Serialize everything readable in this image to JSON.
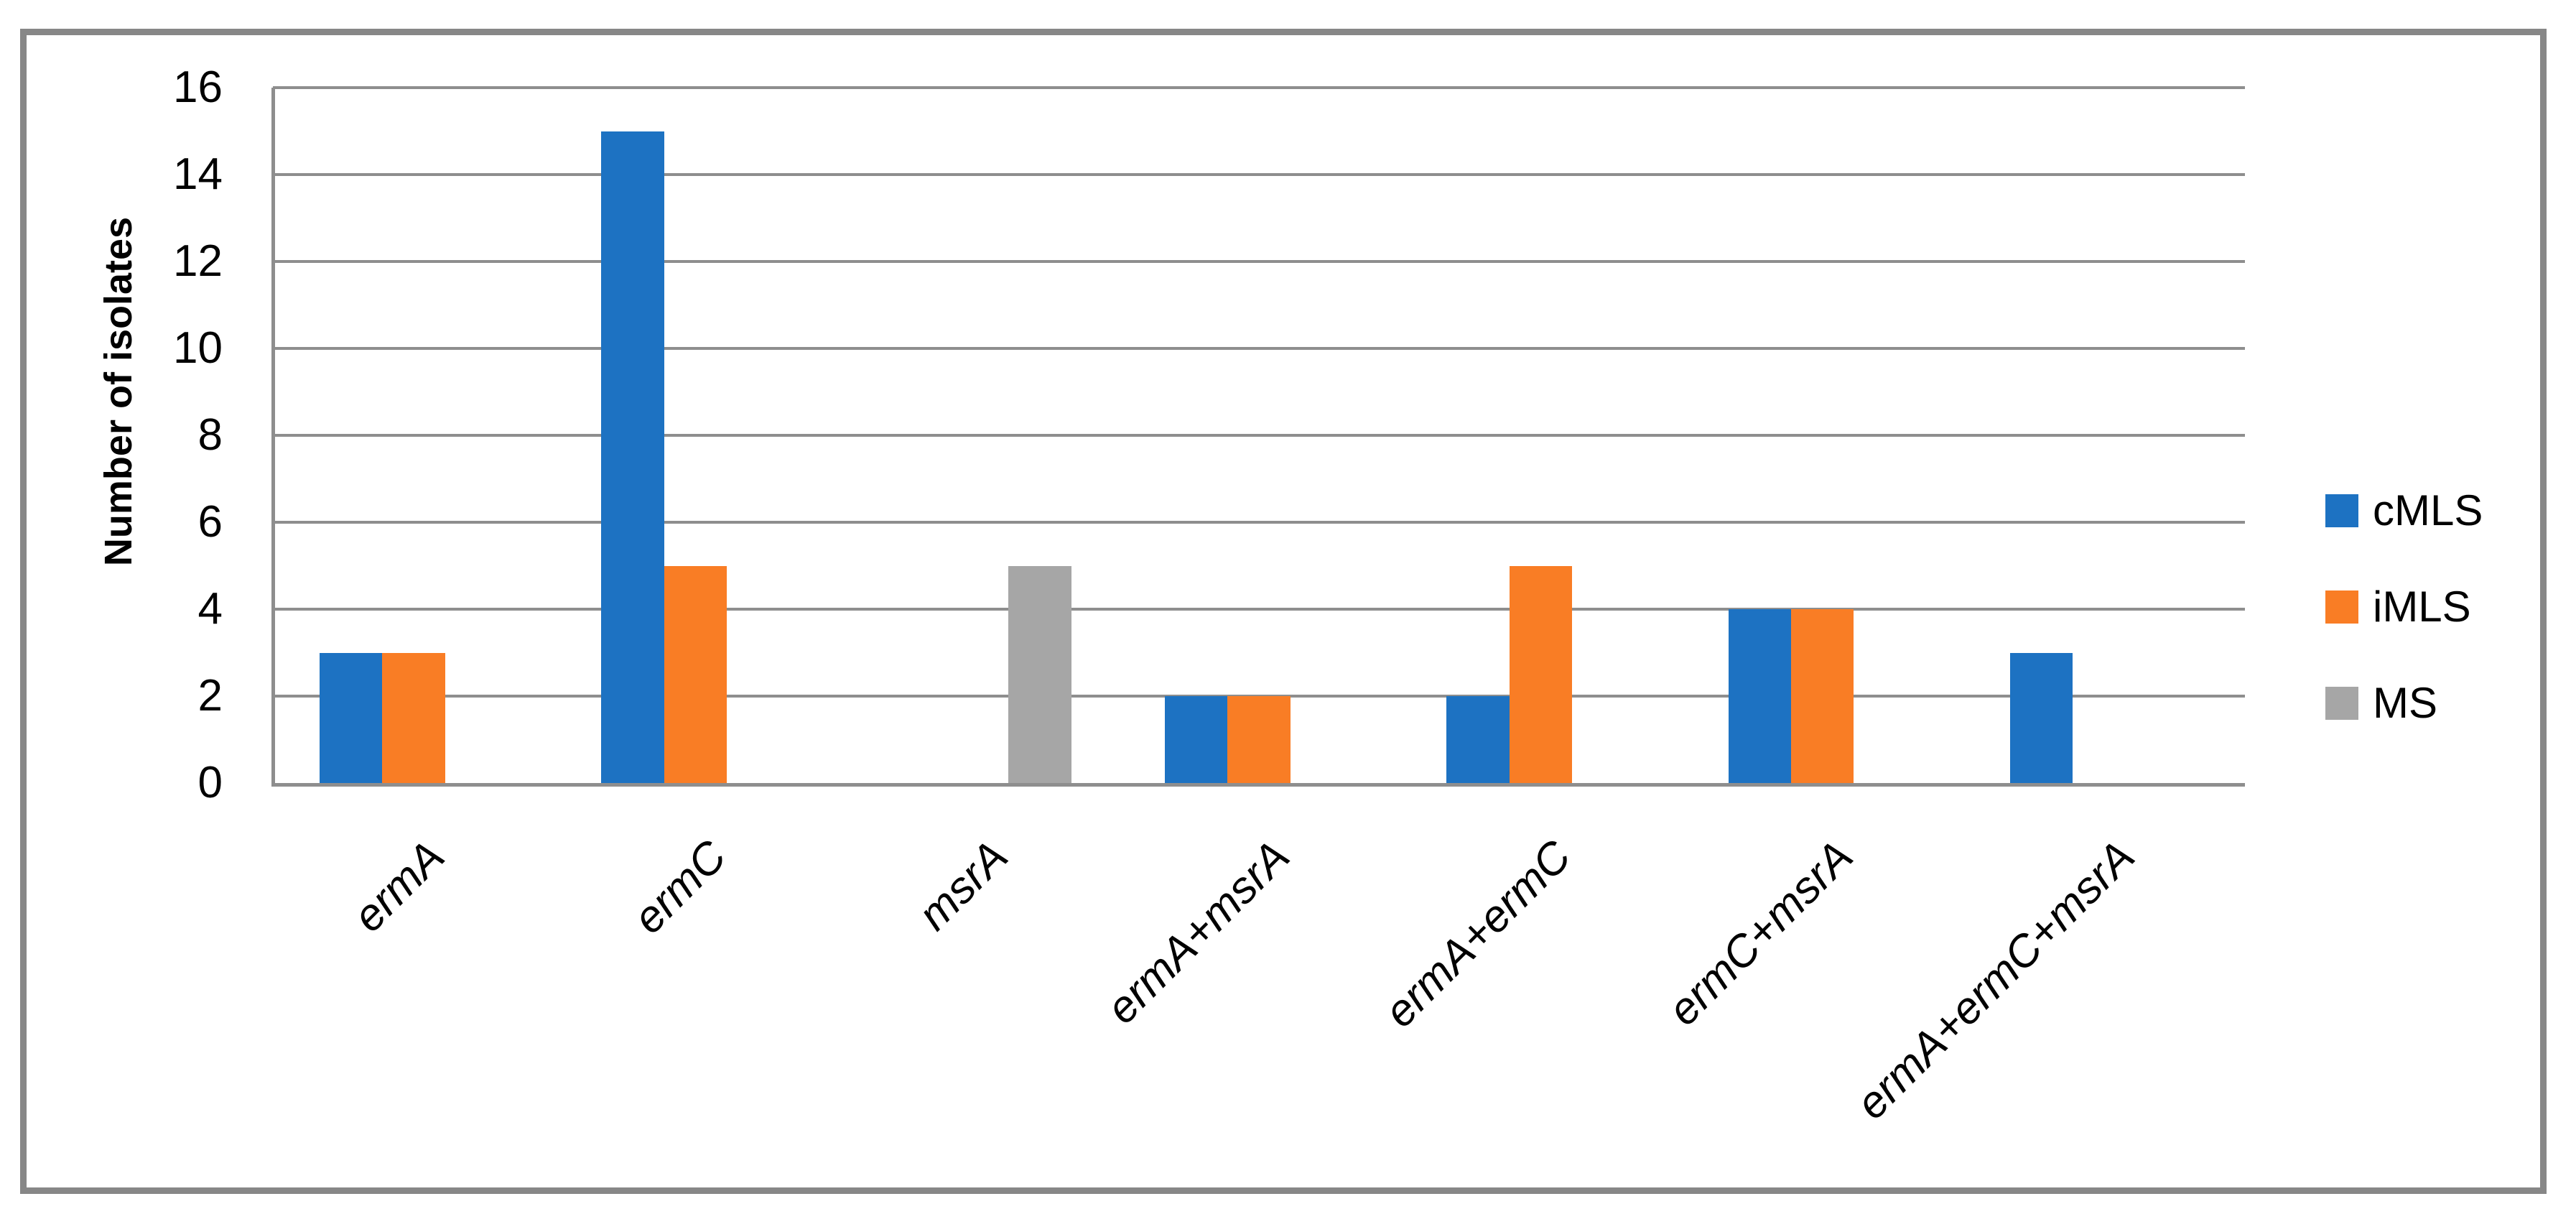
{
  "chart_data": {
    "type": "bar",
    "title": "",
    "categories": [
      "ermA",
      "ermC",
      "msrA",
      "ermA+msrA",
      "ermA+ermC",
      "ermC+msrA",
      "ermA+ermC+msrA"
    ],
    "series": [
      {
        "name": "cMLS",
        "color": "#1D72C2",
        "values": [
          3,
          15,
          0,
          2,
          2,
          4,
          3
        ]
      },
      {
        "name": "iMLS",
        "color": "#F97D25",
        "values": [
          3,
          5,
          0,
          2,
          5,
          4,
          0
        ]
      },
      {
        "name": "MS",
        "color": "#A6A6A6",
        "values": [
          0,
          0,
          5,
          0,
          0,
          0,
          0
        ]
      }
    ],
    "xlabel": "",
    "ylabel": "Number of isolates",
    "ylim": [
      0,
      16
    ],
    "yticks": [
      0,
      2,
      4,
      6,
      8,
      10,
      12,
      14,
      16
    ],
    "grid": true,
    "gridline_color": "#8E8E8E",
    "axis_line_color": "#8E8E8E",
    "frame_border_color": "#878787",
    "legend_position": "right",
    "legend": [
      {
        "label": "cMLS",
        "color": "#1D72C2"
      },
      {
        "label": "iMLS",
        "color": "#F97D25"
      },
      {
        "label": "MS",
        "color": "#A6A6A6"
      }
    ]
  }
}
